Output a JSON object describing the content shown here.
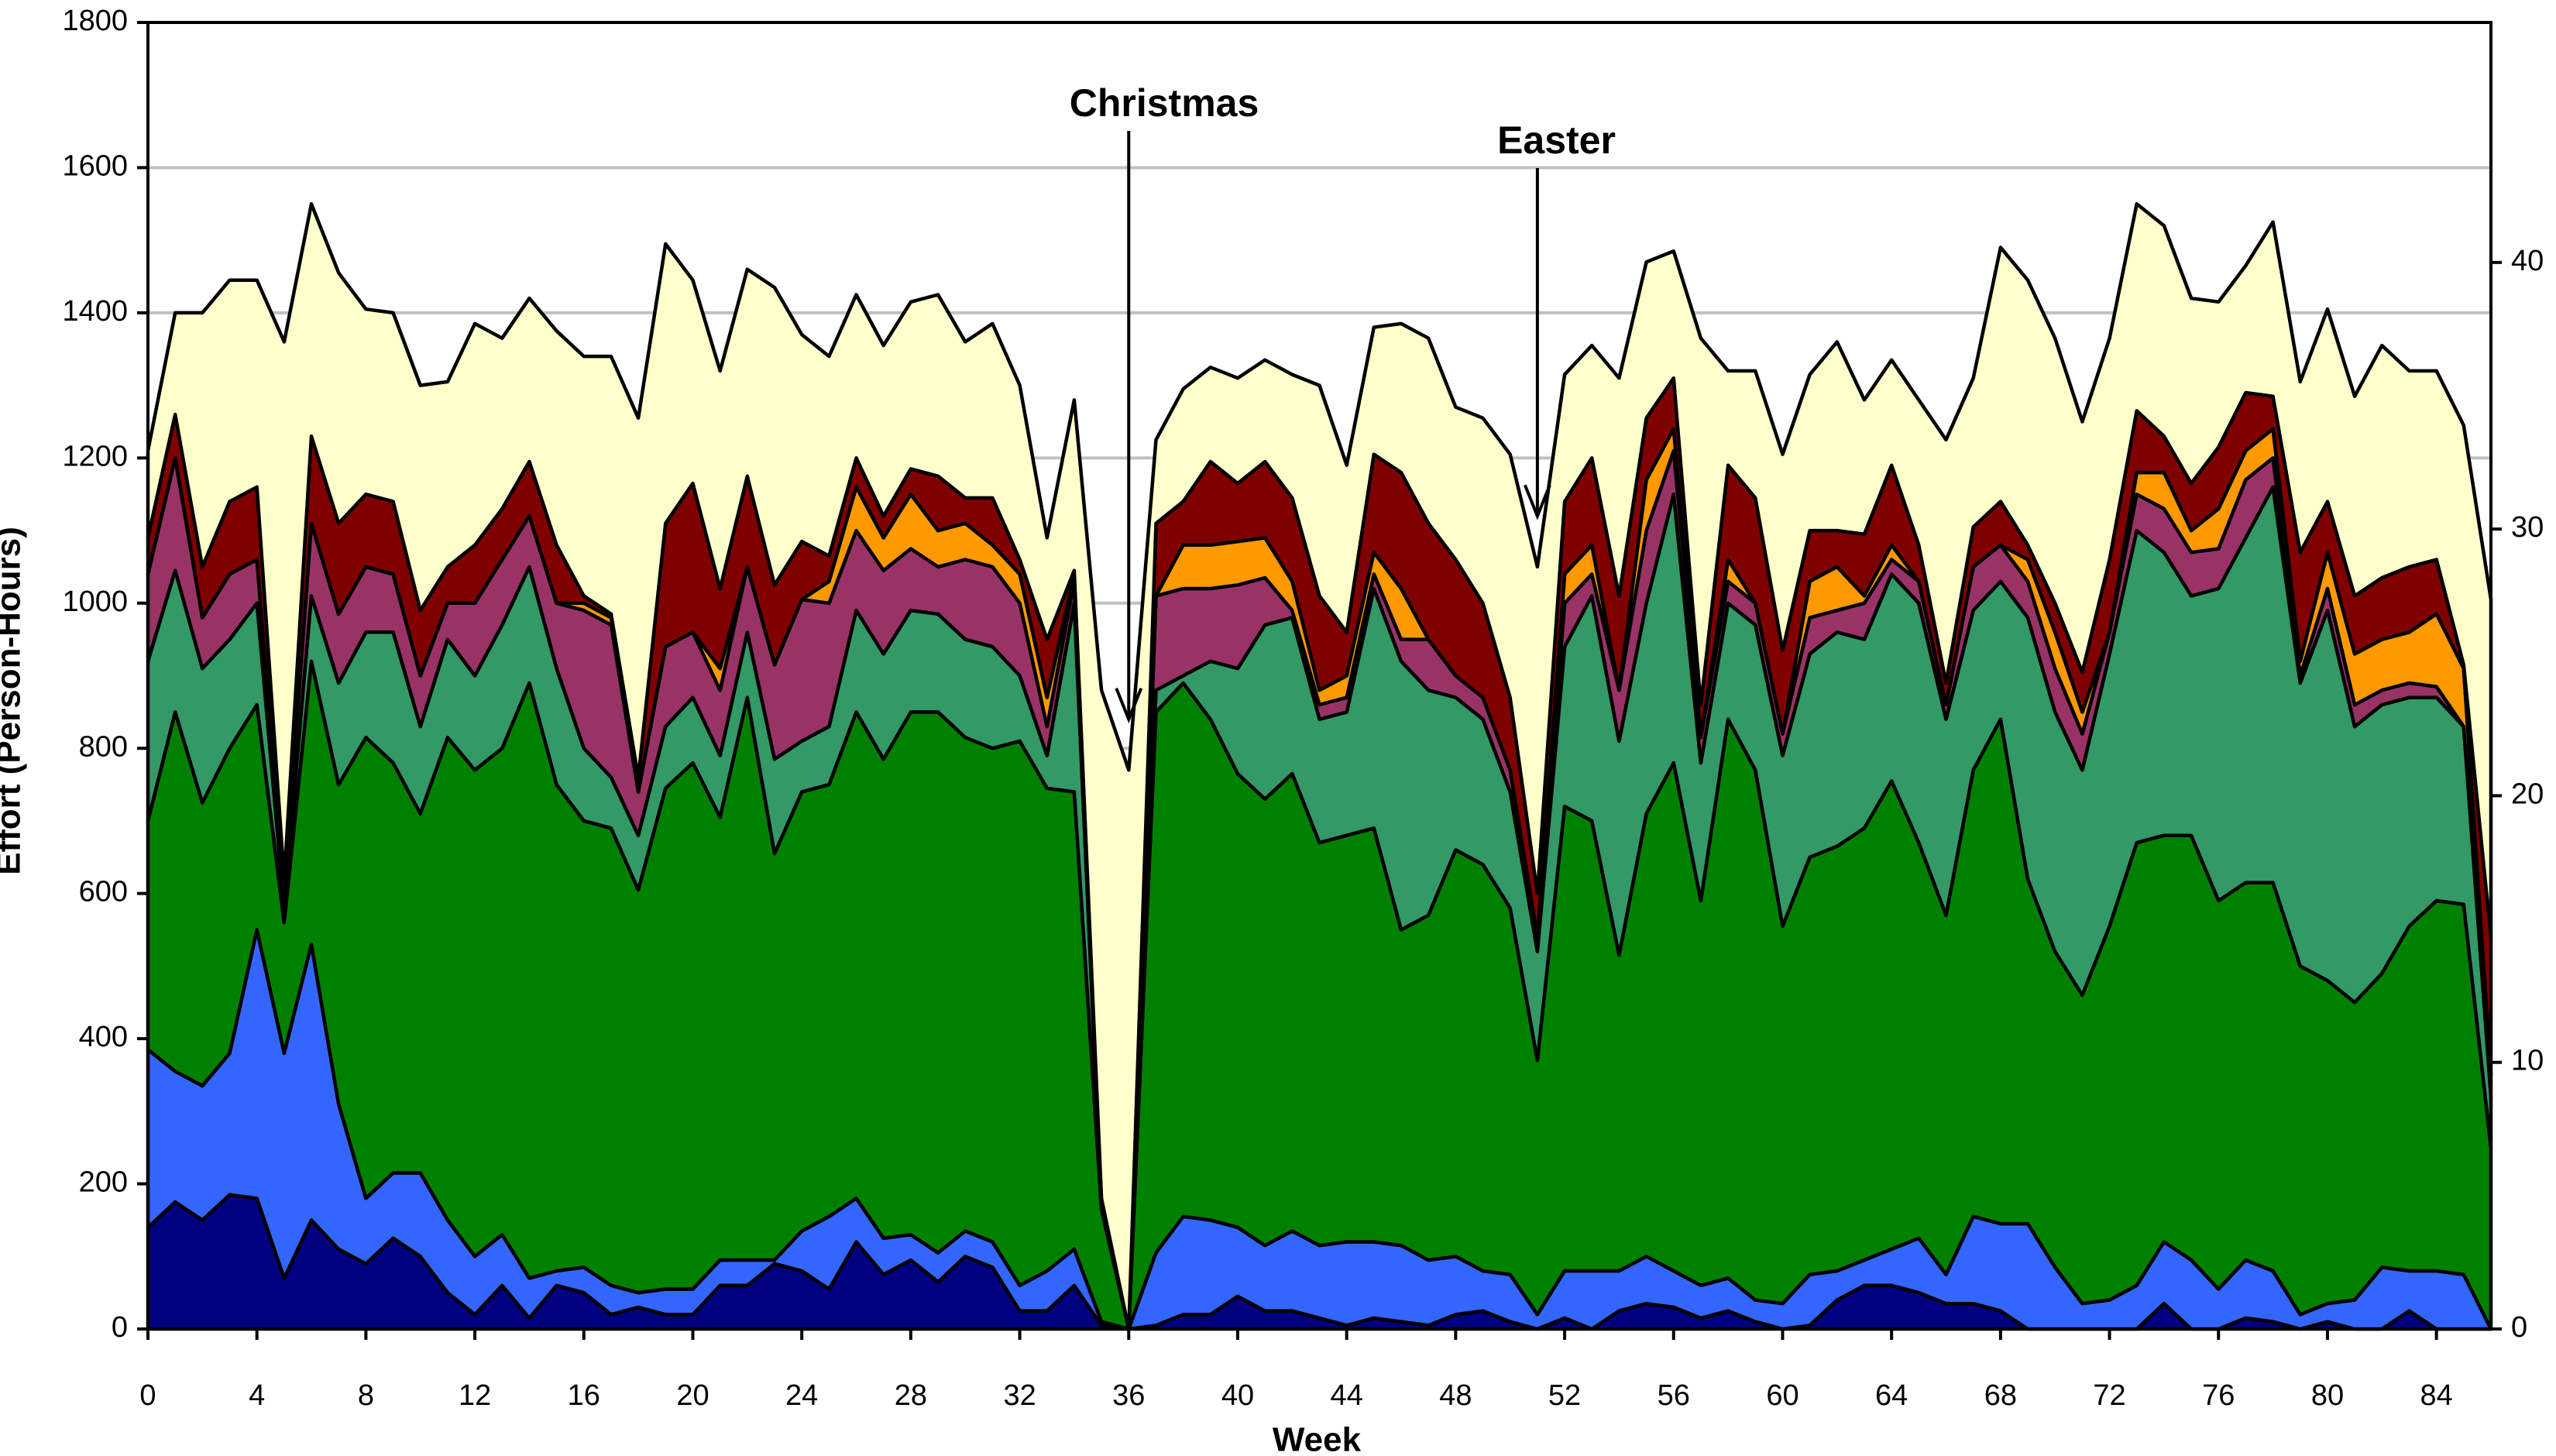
{
  "chart_data": {
    "type": "stacked-area",
    "x": [
      0,
      1,
      2,
      3,
      4,
      5,
      6,
      7,
      8,
      9,
      10,
      11,
      12,
      13,
      14,
      15,
      16,
      17,
      18,
      19,
      20,
      21,
      22,
      23,
      24,
      25,
      26,
      27,
      28,
      29,
      30,
      31,
      32,
      33,
      34,
      35,
      36,
      37,
      38,
      39,
      40,
      41,
      42,
      43,
      44,
      45,
      46,
      47,
      48,
      49,
      50,
      51,
      52,
      53,
      54,
      55,
      56,
      57,
      58,
      59,
      60,
      61,
      62,
      63,
      64,
      65,
      66,
      67,
      68,
      69,
      70,
      71,
      72,
      73,
      74,
      75,
      76,
      77,
      78,
      79,
      80,
      81,
      82,
      83,
      84,
      85,
      86
    ],
    "xlim": [
      0,
      86
    ],
    "xticks": [
      0,
      4,
      8,
      12,
      16,
      20,
      24,
      28,
      32,
      36,
      40,
      44,
      48,
      52,
      56,
      60,
      64,
      68,
      72,
      76,
      80,
      84
    ],
    "ylim": [
      0,
      1800
    ],
    "yticks": [
      0,
      200,
      400,
      600,
      800,
      1000,
      1200,
      1400,
      1600,
      1800
    ],
    "y2lim": [
      0,
      49
    ],
    "y2ticks": [
      0,
      10,
      20,
      30,
      40
    ],
    "x_label": "Week",
    "y_label": "Effort (Person-Hours)",
    "grid": true,
    "annotations": [
      {
        "text": "Christmas",
        "x": 36
      },
      {
        "text": "Easter",
        "x": 51
      }
    ],
    "series": [
      {
        "color": "#000080",
        "values": [
          140,
          175,
          150,
          185,
          180,
          70,
          150,
          110,
          90,
          125,
          100,
          50,
          20,
          60,
          15,
          60,
          50,
          20,
          30,
          20,
          20,
          60,
          60,
          90,
          80,
          55,
          120,
          75,
          95,
          65,
          100,
          85,
          25,
          25,
          60,
          5,
          0,
          5,
          20,
          20,
          45,
          25,
          25,
          15,
          5,
          15,
          10,
          5,
          20,
          25,
          10,
          0,
          15,
          0,
          25,
          35,
          30,
          15,
          25,
          10,
          0,
          5,
          40,
          60,
          60,
          50,
          35,
          35,
          25,
          0,
          0,
          0,
          0,
          0,
          35,
          0,
          0,
          15,
          10,
          0,
          10,
          0,
          0,
          25,
          0,
          0,
          0
        ]
      },
      {
        "color": "#3366ff",
        "values": [
          245,
          180,
          185,
          195,
          370,
          310,
          380,
          200,
          90,
          90,
          115,
          100,
          80,
          70,
          55,
          20,
          35,
          40,
          20,
          35,
          35,
          35,
          35,
          5,
          55,
          100,
          60,
          50,
          35,
          40,
          35,
          35,
          35,
          55,
          50,
          5,
          0,
          100,
          135,
          130,
          95,
          90,
          110,
          100,
          115,
          105,
          105,
          90,
          80,
          55,
          65,
          20,
          65,
          80,
          55,
          65,
          50,
          45,
          45,
          30,
          35,
          70,
          40,
          35,
          50,
          75,
          40,
          120,
          120,
          145,
          85,
          35,
          40,
          60,
          85,
          95,
          55,
          80,
          70,
          20,
          25,
          40,
          85,
          55,
          80,
          75,
          0
        ]
      },
      {
        "color": "#008000",
        "values": [
          315,
          495,
          390,
          420,
          310,
          180,
          390,
          440,
          635,
          565,
          495,
          665,
          670,
          670,
          820,
          670,
          615,
          630,
          555,
          690,
          725,
          610,
          775,
          560,
          605,
          595,
          670,
          660,
          720,
          745,
          680,
          680,
          750,
          665,
          630,
          155,
          0,
          745,
          735,
          690,
          625,
          615,
          630,
          555,
          560,
          570,
          435,
          475,
          560,
          560,
          505,
          350,
          640,
          620,
          435,
          610,
          700,
          530,
          770,
          730,
          520,
          575,
          585,
          595,
          645,
          545,
          495,
          615,
          695,
          475,
          435,
          425,
          515,
          610,
          560,
          585,
          535,
          520,
          535,
          480,
          445,
          410,
          405,
          475,
          510,
          510,
          250
        ]
      },
      {
        "color": "#339966",
        "values": [
          220,
          195,
          185,
          150,
          140,
          20,
          90,
          140,
          145,
          180,
          120,
          135,
          130,
          170,
          160,
          160,
          100,
          70,
          75,
          85,
          90,
          85,
          90,
          130,
          70,
          80,
          140,
          145,
          140,
          135,
          135,
          140,
          90,
          45,
          260,
          5,
          0,
          30,
          10,
          80,
          145,
          240,
          215,
          170,
          170,
          330,
          370,
          310,
          210,
          200,
          160,
          150,
          220,
          310,
          295,
          290,
          370,
          190,
          160,
          200,
          235,
          280,
          295,
          260,
          285,
          330,
          270,
          220,
          190,
          360,
          330,
          310,
          375,
          430,
          390,
          330,
          430,
          475,
          545,
          390,
          510,
          380,
          370,
          315,
          280,
          245,
          70
        ]
      },
      {
        "color": "#993366",
        "values": [
          120,
          155,
          70,
          90,
          60,
          20,
          100,
          95,
          90,
          80,
          70,
          50,
          100,
          90,
          70,
          90,
          190,
          210,
          60,
          110,
          90,
          90,
          90,
          130,
          195,
          170,
          110,
          115,
          85,
          65,
          110,
          110,
          100,
          40,
          30,
          0,
          0,
          130,
          120,
          100,
          115,
          65,
          10,
          20,
          20,
          20,
          30,
          70,
          30,
          30,
          30,
          20,
          60,
          30,
          70,
          100,
          60,
          35,
          30,
          30,
          30,
          50,
          30,
          50,
          20,
          30,
          20,
          60,
          50,
          50,
          60,
          50,
          30,
          50,
          60,
          60,
          55,
          80,
          40,
          10,
          30,
          30,
          20,
          20,
          15,
          0,
          30
        ]
      },
      {
        "color": "#ff9900",
        "values": [
          0,
          0,
          0,
          0,
          0,
          0,
          0,
          0,
          0,
          0,
          0,
          0,
          0,
          0,
          0,
          0,
          10,
          10,
          0,
          0,
          0,
          30,
          0,
          0,
          0,
          30,
          60,
          45,
          75,
          50,
          50,
          30,
          40,
          40,
          10,
          0,
          0,
          0,
          60,
          60,
          60,
          55,
          40,
          20,
          30,
          30,
          70,
          0,
          0,
          0,
          0,
          0,
          40,
          40,
          0,
          70,
          30,
          0,
          30,
          0,
          0,
          50,
          60,
          10,
          20,
          0,
          0,
          0,
          0,
          30,
          50,
          30,
          0,
          30,
          50,
          30,
          55,
          40,
          40,
          20,
          50,
          70,
          70,
          70,
          100,
          80,
          0
        ]
      },
      {
        "color": "#800000",
        "values": [
          50,
          60,
          70,
          100,
          100,
          20,
          120,
          125,
          100,
          100,
          90,
          50,
          80,
          70,
          75,
          80,
          10,
          5,
          20,
          170,
          205,
          110,
          125,
          110,
          80,
          35,
          40,
          30,
          35,
          75,
          35,
          65,
          20,
          80,
          5,
          10,
          0,
          100,
          60,
          115,
          80,
          105,
          115,
          130,
          60,
          135,
          160,
          160,
          160,
          130,
          100,
          60,
          100,
          120,
          130,
          85,
          70,
          45,
          130,
          145,
          115,
          70,
          50,
          85,
          110,
          50,
          30,
          55,
          60,
          20,
          40,
          55,
          100,
          85,
          50,
          65,
          85,
          80,
          45,
          150,
          70,
          80,
          85,
          90,
          75,
          5,
          190
        ]
      },
      {
        "color": "#ffffcc",
        "values": [
          120,
          140,
          350,
          305,
          285,
          740,
          320,
          345,
          255,
          260,
          310,
          255,
          305,
          235,
          225,
          295,
          330,
          355,
          495,
          385,
          280,
          300,
          285,
          410,
          285,
          275,
          225,
          235,
          230,
          250,
          215,
          240,
          240,
          140,
          235,
          700,
          770,
          115,
          155,
          130,
          145,
          140,
          170,
          290,
          230,
          175,
          205,
          255,
          210,
          255,
          335,
          450,
          175,
          155,
          300,
          215,
          175,
          505,
          130,
          175,
          270,
          215,
          260,
          185,
          145,
          200,
          335,
          205,
          350,
          365,
          365,
          345,
          305,
          285,
          290,
          255,
          200,
          175,
          240,
          235,
          265,
          275,
          320,
          270,
          260,
          330,
          465
        ]
      }
    ]
  }
}
